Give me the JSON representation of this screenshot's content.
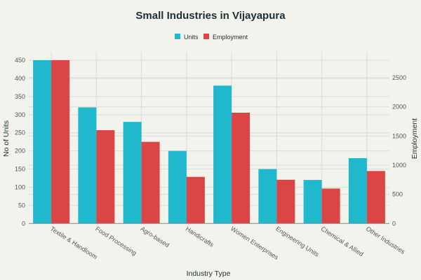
{
  "chart_data": {
    "type": "bar",
    "title": "Small Industries in Vijayapura",
    "xlabel": "Industry Type",
    "ylabel": "No of Units",
    "y2label": "Employment",
    "categories": [
      "Textile & Handloom",
      "Food Processing",
      "Agro-based",
      "Handicrafts",
      "Women Enterprises",
      "Engineering Units",
      "Chemical & Allied",
      "Other Industries"
    ],
    "series": [
      {
        "name": "Units",
        "axis": "left",
        "color": "#1fb8cd",
        "values": [
          450,
          320,
          280,
          200,
          380,
          150,
          120,
          180
        ]
      },
      {
        "name": "Employment",
        "axis": "right",
        "color": "#db4545",
        "values": [
          2800,
          1600,
          1400,
          800,
          1900,
          750,
          600,
          900
        ]
      }
    ],
    "ylim": [
      0,
      450
    ],
    "y2lim": [
      0,
      2800
    ],
    "yticks": [
      0,
      50,
      100,
      150,
      200,
      250,
      300,
      350,
      400,
      450
    ],
    "y2ticks": [
      0,
      500,
      1000,
      1500,
      2000,
      2500
    ],
    "grid": true,
    "legend_position": "top-center"
  }
}
